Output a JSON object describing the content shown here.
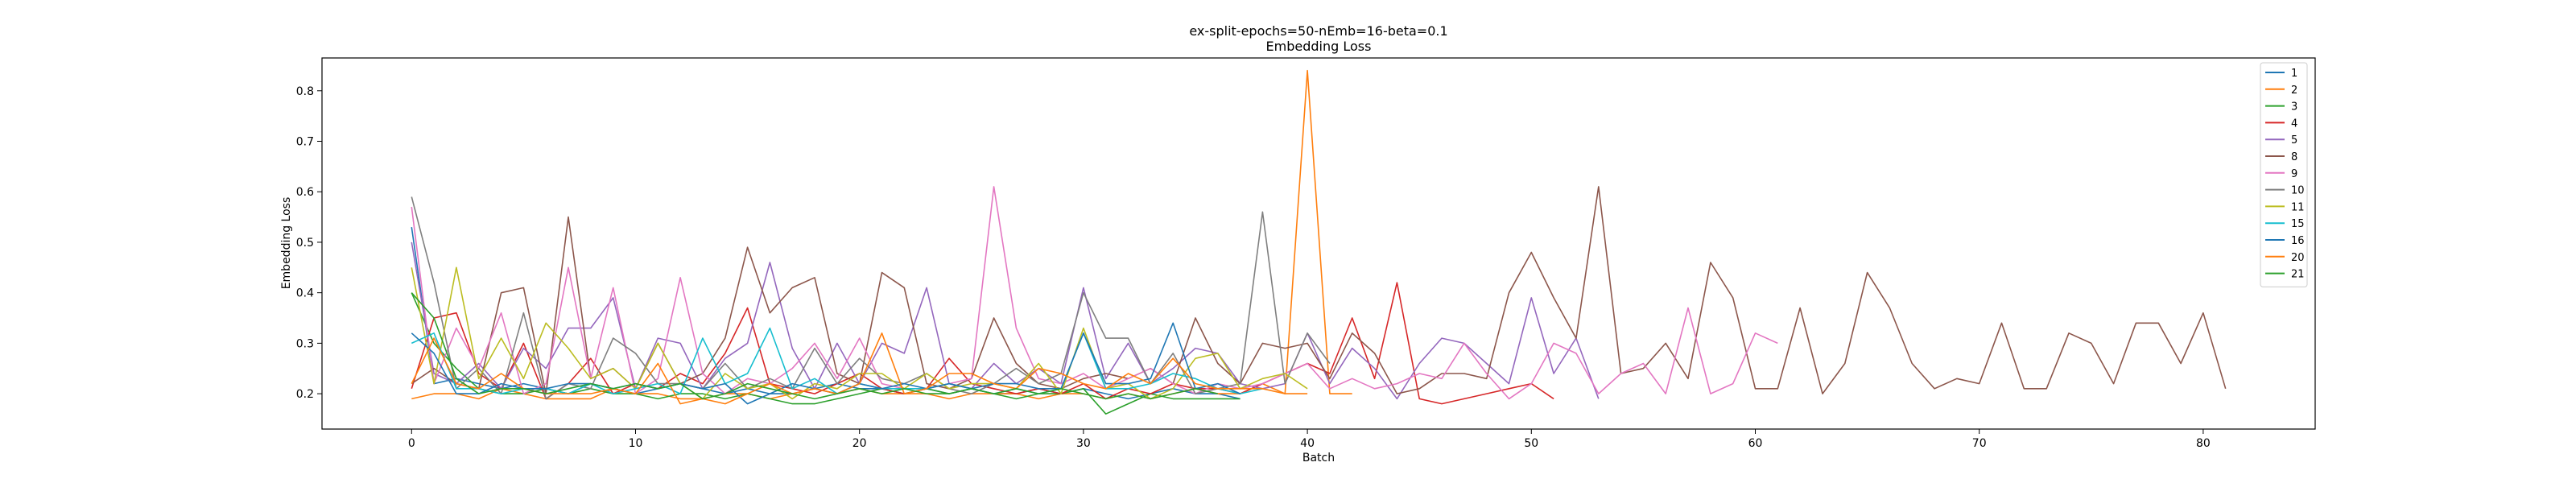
{
  "chart_data": {
    "type": "line",
    "title": "ex-split-epochs=50-nEmb=16-beta=0.1",
    "subtitle": "Embedding Loss",
    "xlabel": "Batch",
    "ylabel": "Embedding Loss",
    "xlim": [
      -4,
      85
    ],
    "ylim": [
      0.13,
      0.865
    ],
    "xticks": [
      0,
      10,
      20,
      30,
      40,
      50,
      60,
      70,
      80
    ],
    "yticks": [
      0.2,
      0.3,
      0.4,
      0.5,
      0.6,
      0.7,
      0.8
    ],
    "legend_position": "top-right",
    "grid": false,
    "series": [
      {
        "name": "1",
        "color": "#1f77b4",
        "values": [
          0.53,
          0.22,
          0.23,
          0.22,
          0.21,
          0.22,
          0.21,
          0.2,
          0.22,
          0.21,
          0.2,
          0.21,
          0.22,
          0.21,
          0.2,
          0.21,
          0.2,
          0.2,
          0.21,
          0.22,
          0.21,
          0.21,
          0.2,
          0.21,
          0.2,
          0.21,
          0.2,
          0.2,
          0.21,
          0.2,
          0.21,
          0.2,
          0.19,
          0.2,
          0.21,
          0.2,
          0.2,
          0.19
        ]
      },
      {
        "name": "2",
        "color": "#ff7f0e",
        "values": [
          0.19,
          0.2,
          0.2,
          0.19,
          0.21,
          0.2,
          0.19,
          0.19,
          0.19,
          0.21,
          0.2,
          0.2,
          0.19,
          0.19,
          0.2,
          0.2,
          0.19,
          0.2,
          0.21,
          0.2,
          0.21,
          0.2,
          0.2,
          0.2,
          0.19,
          0.2,
          0.2,
          0.2,
          0.19,
          0.2,
          0.2,
          0.19,
          0.2,
          0.19,
          0.2,
          0.21,
          0.2,
          0.2,
          0.22,
          0.2,
          0.84,
          0.2,
          0.2
        ]
      },
      {
        "name": "3",
        "color": "#2ca02c",
        "values": [
          0.4,
          0.3,
          0.25,
          0.21,
          0.2,
          0.2,
          0.21,
          0.2,
          0.21,
          0.2,
          0.2,
          0.19,
          0.2,
          0.2,
          0.19,
          0.2,
          0.19,
          0.18,
          0.18,
          0.19,
          0.2,
          0.21,
          0.2,
          0.21,
          0.2,
          0.21,
          0.2,
          0.19,
          0.2,
          0.2,
          0.21,
          0.16,
          0.18,
          0.2,
          0.19,
          0.19,
          0.19,
          0.19
        ]
      },
      {
        "name": "4",
        "color": "#d62728",
        "values": [
          0.21,
          0.35,
          0.36,
          0.24,
          0.21,
          0.3,
          0.19,
          0.22,
          0.27,
          0.2,
          0.22,
          0.21,
          0.24,
          0.22,
          0.28,
          0.37,
          0.22,
          0.21,
          0.2,
          0.22,
          0.24,
          0.21,
          0.2,
          0.21,
          0.27,
          0.22,
          0.21,
          0.2,
          0.21,
          0.2,
          0.22,
          0.19,
          0.21,
          0.2,
          0.22,
          0.21,
          0.21,
          0.2,
          0.22,
          0.24,
          0.26,
          0.24,
          0.35,
          0.23,
          0.42,
          0.19,
          0.18,
          0.19,
          0.2,
          0.21,
          0.22,
          0.19
        ]
      },
      {
        "name": "5",
        "color": "#9467bd",
        "values": [
          0.5,
          0.24,
          0.22,
          0.26,
          0.21,
          0.29,
          0.25,
          0.33,
          0.33,
          0.39,
          0.21,
          0.31,
          0.3,
          0.21,
          0.27,
          0.3,
          0.46,
          0.29,
          0.21,
          0.3,
          0.22,
          0.3,
          0.28,
          0.41,
          0.22,
          0.21,
          0.26,
          0.22,
          0.25,
          0.22,
          0.41,
          0.23,
          0.3,
          0.22,
          0.25,
          0.29,
          0.28,
          0.22,
          0.21,
          0.22,
          0.32,
          0.22,
          0.29,
          0.25,
          0.19,
          0.26,
          0.31,
          0.3,
          0.26,
          0.22,
          0.39,
          0.24,
          0.31,
          0.19
        ]
      },
      {
        "name": "8",
        "color": "#8c564b",
        "values": [
          0.22,
          0.25,
          0.22,
          0.21,
          0.4,
          0.41,
          0.2,
          0.55,
          0.23,
          0.25,
          0.21,
          0.3,
          0.22,
          0.24,
          0.31,
          0.49,
          0.36,
          0.41,
          0.43,
          0.24,
          0.22,
          0.44,
          0.41,
          0.22,
          0.21,
          0.23,
          0.35,
          0.26,
          0.22,
          0.21,
          0.23,
          0.24,
          0.23,
          0.25,
          0.22,
          0.35,
          0.26,
          0.22,
          0.3,
          0.29,
          0.3,
          0.23,
          0.32,
          0.28,
          0.2,
          0.21,
          0.24,
          0.24,
          0.23,
          0.4,
          0.48,
          0.39,
          0.31,
          0.61,
          0.24,
          0.25,
          0.3,
          0.23,
          0.46,
          0.39,
          0.21,
          0.21,
          0.37,
          0.2,
          0.26,
          0.44,
          0.37,
          0.26,
          0.21,
          0.23,
          0.22,
          0.34,
          0.21,
          0.21,
          0.32,
          0.3,
          0.22,
          0.34,
          0.34,
          0.26,
          0.36,
          0.21
        ]
      },
      {
        "name": "9",
        "color": "#e377c2",
        "values": [
          0.57,
          0.22,
          0.33,
          0.25,
          0.36,
          0.2,
          0.22,
          0.45,
          0.23,
          0.41,
          0.2,
          0.23,
          0.43,
          0.24,
          0.2,
          0.23,
          0.22,
          0.25,
          0.3,
          0.23,
          0.31,
          0.22,
          0.21,
          0.21,
          0.22,
          0.23,
          0.61,
          0.33,
          0.23,
          0.22,
          0.24,
          0.21,
          0.23,
          0.25,
          0.22,
          0.2,
          0.22,
          0.21,
          0.22,
          0.24,
          0.26,
          0.21,
          0.23,
          0.21,
          0.22,
          0.24,
          0.23,
          0.3,
          0.24,
          0.19,
          0.22,
          0.3,
          0.28,
          0.2,
          0.24,
          0.26,
          0.2,
          0.37,
          0.2,
          0.22,
          0.32,
          0.3
        ]
      },
      {
        "name": "10",
        "color": "#7f7f7f",
        "values": [
          0.59,
          0.42,
          0.21,
          0.25,
          0.2,
          0.36,
          0.19,
          0.22,
          0.21,
          0.31,
          0.28,
          0.22,
          0.22,
          0.21,
          0.26,
          0.21,
          0.23,
          0.21,
          0.29,
          0.22,
          0.27,
          0.23,
          0.22,
          0.24,
          0.21,
          0.2,
          0.22,
          0.25,
          0.22,
          0.24,
          0.4,
          0.31,
          0.31,
          0.22,
          0.28,
          0.2,
          0.21,
          0.22,
          0.56,
          0.22,
          0.32,
          0.26
        ]
      },
      {
        "name": "11",
        "color": "#bcbd22",
        "values": [
          0.45,
          0.22,
          0.45,
          0.23,
          0.31,
          0.23,
          0.34,
          0.29,
          0.23,
          0.25,
          0.21,
          0.3,
          0.22,
          0.19,
          0.24,
          0.21,
          0.22,
          0.19,
          0.22,
          0.21,
          0.24,
          0.24,
          0.21,
          0.24,
          0.21,
          0.22,
          0.22,
          0.21,
          0.26,
          0.2,
          0.33,
          0.21,
          0.22,
          0.19,
          0.21,
          0.27,
          0.28,
          0.21,
          0.23,
          0.24,
          0.21
        ]
      },
      {
        "name": "15",
        "color": "#17becf",
        "values": [
          0.3,
          0.32,
          0.21,
          0.21,
          0.2,
          0.21,
          0.21,
          0.2,
          0.22,
          0.2,
          0.21,
          0.22,
          0.2,
          0.31,
          0.22,
          0.24,
          0.33,
          0.21,
          0.23,
          0.2,
          0.22,
          0.21,
          0.21,
          0.21,
          0.22,
          0.21,
          0.2,
          0.21,
          0.2,
          0.21,
          0.32,
          0.21,
          0.21,
          0.22,
          0.24,
          0.23,
          0.21,
          0.2,
          0.21
        ]
      },
      {
        "name": "16",
        "color": "#1f77b4",
        "values": [
          0.32,
          0.28,
          0.2,
          0.2,
          0.22,
          0.21,
          0.21,
          0.22,
          0.22,
          0.21,
          0.22,
          0.21,
          0.22,
          0.21,
          0.22,
          0.18,
          0.2,
          0.22,
          0.21,
          0.2,
          0.22,
          0.21,
          0.22,
          0.21,
          0.22,
          0.21,
          0.22,
          0.22,
          0.21,
          0.21,
          0.32,
          0.22,
          0.22,
          0.23,
          0.34,
          0.21,
          0.22,
          0.2
        ]
      },
      {
        "name": "20",
        "color": "#ff7f0e",
        "values": [
          0.22,
          0.31,
          0.22,
          0.21,
          0.24,
          0.21,
          0.2,
          0.2,
          0.2,
          0.21,
          0.2,
          0.26,
          0.18,
          0.19,
          0.18,
          0.2,
          0.22,
          0.2,
          0.21,
          0.2,
          0.22,
          0.32,
          0.2,
          0.21,
          0.24,
          0.24,
          0.22,
          0.21,
          0.25,
          0.24,
          0.22,
          0.21,
          0.24,
          0.22,
          0.27,
          0.22,
          0.21,
          0.21,
          0.21,
          0.2,
          0.2
        ]
      },
      {
        "name": "21",
        "color": "#2ca02c",
        "values": [
          0.4,
          0.35,
          0.23,
          0.2,
          0.21,
          0.21,
          0.2,
          0.21,
          0.22,
          0.21,
          0.22,
          0.21,
          0.22,
          0.19,
          0.2,
          0.22,
          0.21,
          0.2,
          0.19,
          0.2,
          0.21,
          0.2,
          0.21,
          0.2,
          0.2,
          0.21,
          0.2,
          0.21,
          0.2,
          0.21,
          0.2,
          0.19,
          0.2,
          0.19,
          0.2,
          0.21,
          0.2
        ]
      }
    ]
  }
}
